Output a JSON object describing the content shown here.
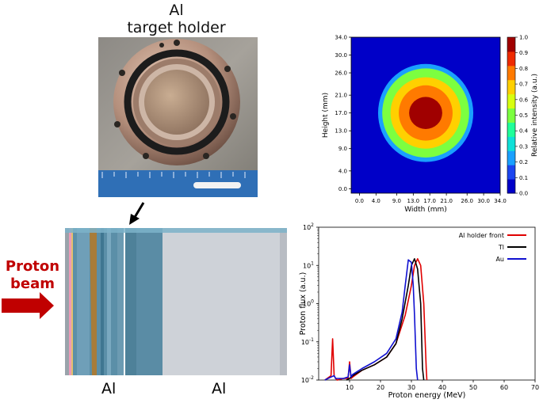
{
  "photo_title": [
    "Al",
    "target holder"
  ],
  "beam_label": [
    "Proton",
    "beam"
  ],
  "stack_labels": [
    "Al",
    "Al"
  ],
  "colors": {
    "proton_arrow": "#c00000",
    "layer_blue": "#5b8fa8",
    "layer_gray": "#c8ccd2",
    "layer_orange": "#b07a2c"
  },
  "chart_data": [
    {
      "type": "heatmap",
      "xlabel": "Width (mm)",
      "ylabel": "Height (mm)",
      "xticks": [
        "0.0",
        "4.0",
        "9.0",
        "13.0",
        "17.0",
        "21.0",
        "26.0",
        "30.0",
        "34.0"
      ],
      "yticks": [
        "0.0",
        "4.0",
        "9.0",
        "13.0",
        "17.0",
        "21.0",
        "26.0",
        "30.0",
        "34.0"
      ],
      "xlim": [
        -2,
        34
      ],
      "ylim": [
        -1,
        34
      ],
      "colorbar": {
        "label": "Relative intensity (a.u.)",
        "ticks": [
          "0.0",
          "0.1",
          "0.2",
          "0.3",
          "0.4",
          "0.5",
          "0.6",
          "0.7",
          "0.8",
          "0.9",
          "1.0"
        ],
        "colors": [
          "#0000c8",
          "#1c46f0",
          "#1aa0ff",
          "#10e0d8",
          "#20ff9a",
          "#7cff40",
          "#d8ff10",
          "#ffd000",
          "#ff7a00",
          "#ee2a00",
          "#a00000"
        ]
      },
      "regions": [
        {
          "level": 0.2,
          "cx": 16,
          "cy": 17,
          "rx": 11.5,
          "ry": 11
        },
        {
          "level": 0.5,
          "cx": 16,
          "cy": 17,
          "rx": 10.5,
          "ry": 10
        },
        {
          "level": 0.7,
          "cx": 16,
          "cy": 17,
          "rx": 8.5,
          "ry": 8
        },
        {
          "level": 0.8,
          "cx": 16,
          "cy": 17,
          "rx": 6.5,
          "ry": 6.2
        },
        {
          "level": 0.95,
          "cx": 16,
          "cy": 17,
          "rx": 4,
          "ry": 3.6
        }
      ]
    },
    {
      "type": "line",
      "xlabel": "Proton energy (MeV)",
      "ylabel": "Proton flux (a.u.)",
      "xlim": [
        0,
        70
      ],
      "ylim": [
        0.01,
        100
      ],
      "yscale": "log",
      "xticks": [
        "10",
        "20",
        "30",
        "40",
        "50",
        "60",
        "70"
      ],
      "yticks": [
        "10^-2",
        "10^-1",
        "10^0",
        "10^1",
        "10^2"
      ],
      "legend_position": "top-right",
      "series": [
        {
          "name": "Al holder front",
          "color": "#e00000",
          "x": [
            2,
            4,
            4.5,
            5,
            5.5,
            6,
            8,
            9.5,
            10,
            10.5,
            11,
            14,
            18,
            22,
            25,
            28,
            30,
            31,
            32,
            33,
            34,
            34.8,
            35
          ],
          "y": [
            0.01,
            0.013,
            0.12,
            0.013,
            0.011,
            0.01,
            0.011,
            0.011,
            0.03,
            0.011,
            0.012,
            0.018,
            0.025,
            0.04,
            0.09,
            0.5,
            3,
            10,
            15,
            10,
            1,
            0.02,
            0.01
          ]
        },
        {
          "name": "Tl",
          "color": "#000000",
          "x": [
            9,
            10,
            11,
            14,
            18,
            22,
            25,
            27,
            29,
            30,
            31,
            32,
            33,
            33.6,
            34
          ],
          "y": [
            0.01,
            0.011,
            0.013,
            0.018,
            0.025,
            0.04,
            0.09,
            0.4,
            3,
            10,
            15,
            8,
            1,
            0.02,
            0.01
          ]
        },
        {
          "name": "Au",
          "color": "#1010d0",
          "x": [
            2,
            4,
            5,
            5.5,
            8,
            9.5,
            10,
            10.5,
            11,
            14,
            18,
            22,
            25,
            27,
            28,
            29,
            30,
            30.6,
            31,
            31.6,
            32
          ],
          "y": [
            0.01,
            0.012,
            0.013,
            0.011,
            0.011,
            0.012,
            0.025,
            0.012,
            0.014,
            0.02,
            0.03,
            0.05,
            0.12,
            0.6,
            3,
            14,
            12,
            3,
            0.5,
            0.02,
            0.01
          ]
        }
      ]
    }
  ]
}
